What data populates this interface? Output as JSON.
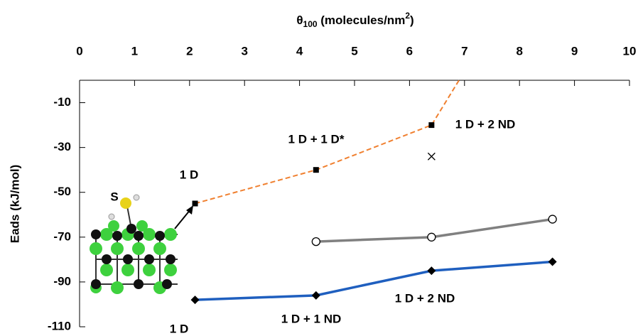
{
  "chart_data": {
    "type": "line",
    "title": {
      "symbol": "θ",
      "subscript": "100",
      "text": " (molecules/nm",
      "superscript": "2",
      "end": ")"
    },
    "y_label": "Eads (kJ/mol)",
    "xlim": [
      0,
      10
    ],
    "xticks": [
      0,
      1,
      2,
      3,
      4,
      5,
      6,
      7,
      8,
      9,
      10
    ],
    "ylim": [
      -110,
      0
    ],
    "yticks": [
      -10,
      -30,
      -50,
      -70,
      -90,
      -110
    ],
    "series": [
      {
        "x": [
          2.1,
          4.3,
          6.4,
          6.9
        ],
        "values": [
          -55,
          -40,
          -20,
          0
        ],
        "color": "#f08030",
        "dash": true,
        "marker": "square"
      },
      {
        "x": [
          4.3,
          6.4,
          8.6
        ],
        "values": [
          -72,
          -70,
          -62
        ],
        "color": "#808080",
        "dash": false,
        "marker": "circle"
      },
      {
        "x": [
          2.1,
          4.3,
          6.4,
          8.6
        ],
        "values": [
          -98,
          -96,
          -85,
          -81
        ],
        "color": "#1f5fbf",
        "dash": false,
        "marker": "diamond"
      }
    ],
    "extra_points": [
      {
        "x": 6.4,
        "value": -34,
        "marker": "cross"
      }
    ],
    "annotations": [
      "1 D",
      "1 D + 1 D*",
      "1 D + 2 ND",
      "1 D + 1 ND",
      "1 D + 2 ND",
      "1 D",
      "S"
    ]
  }
}
